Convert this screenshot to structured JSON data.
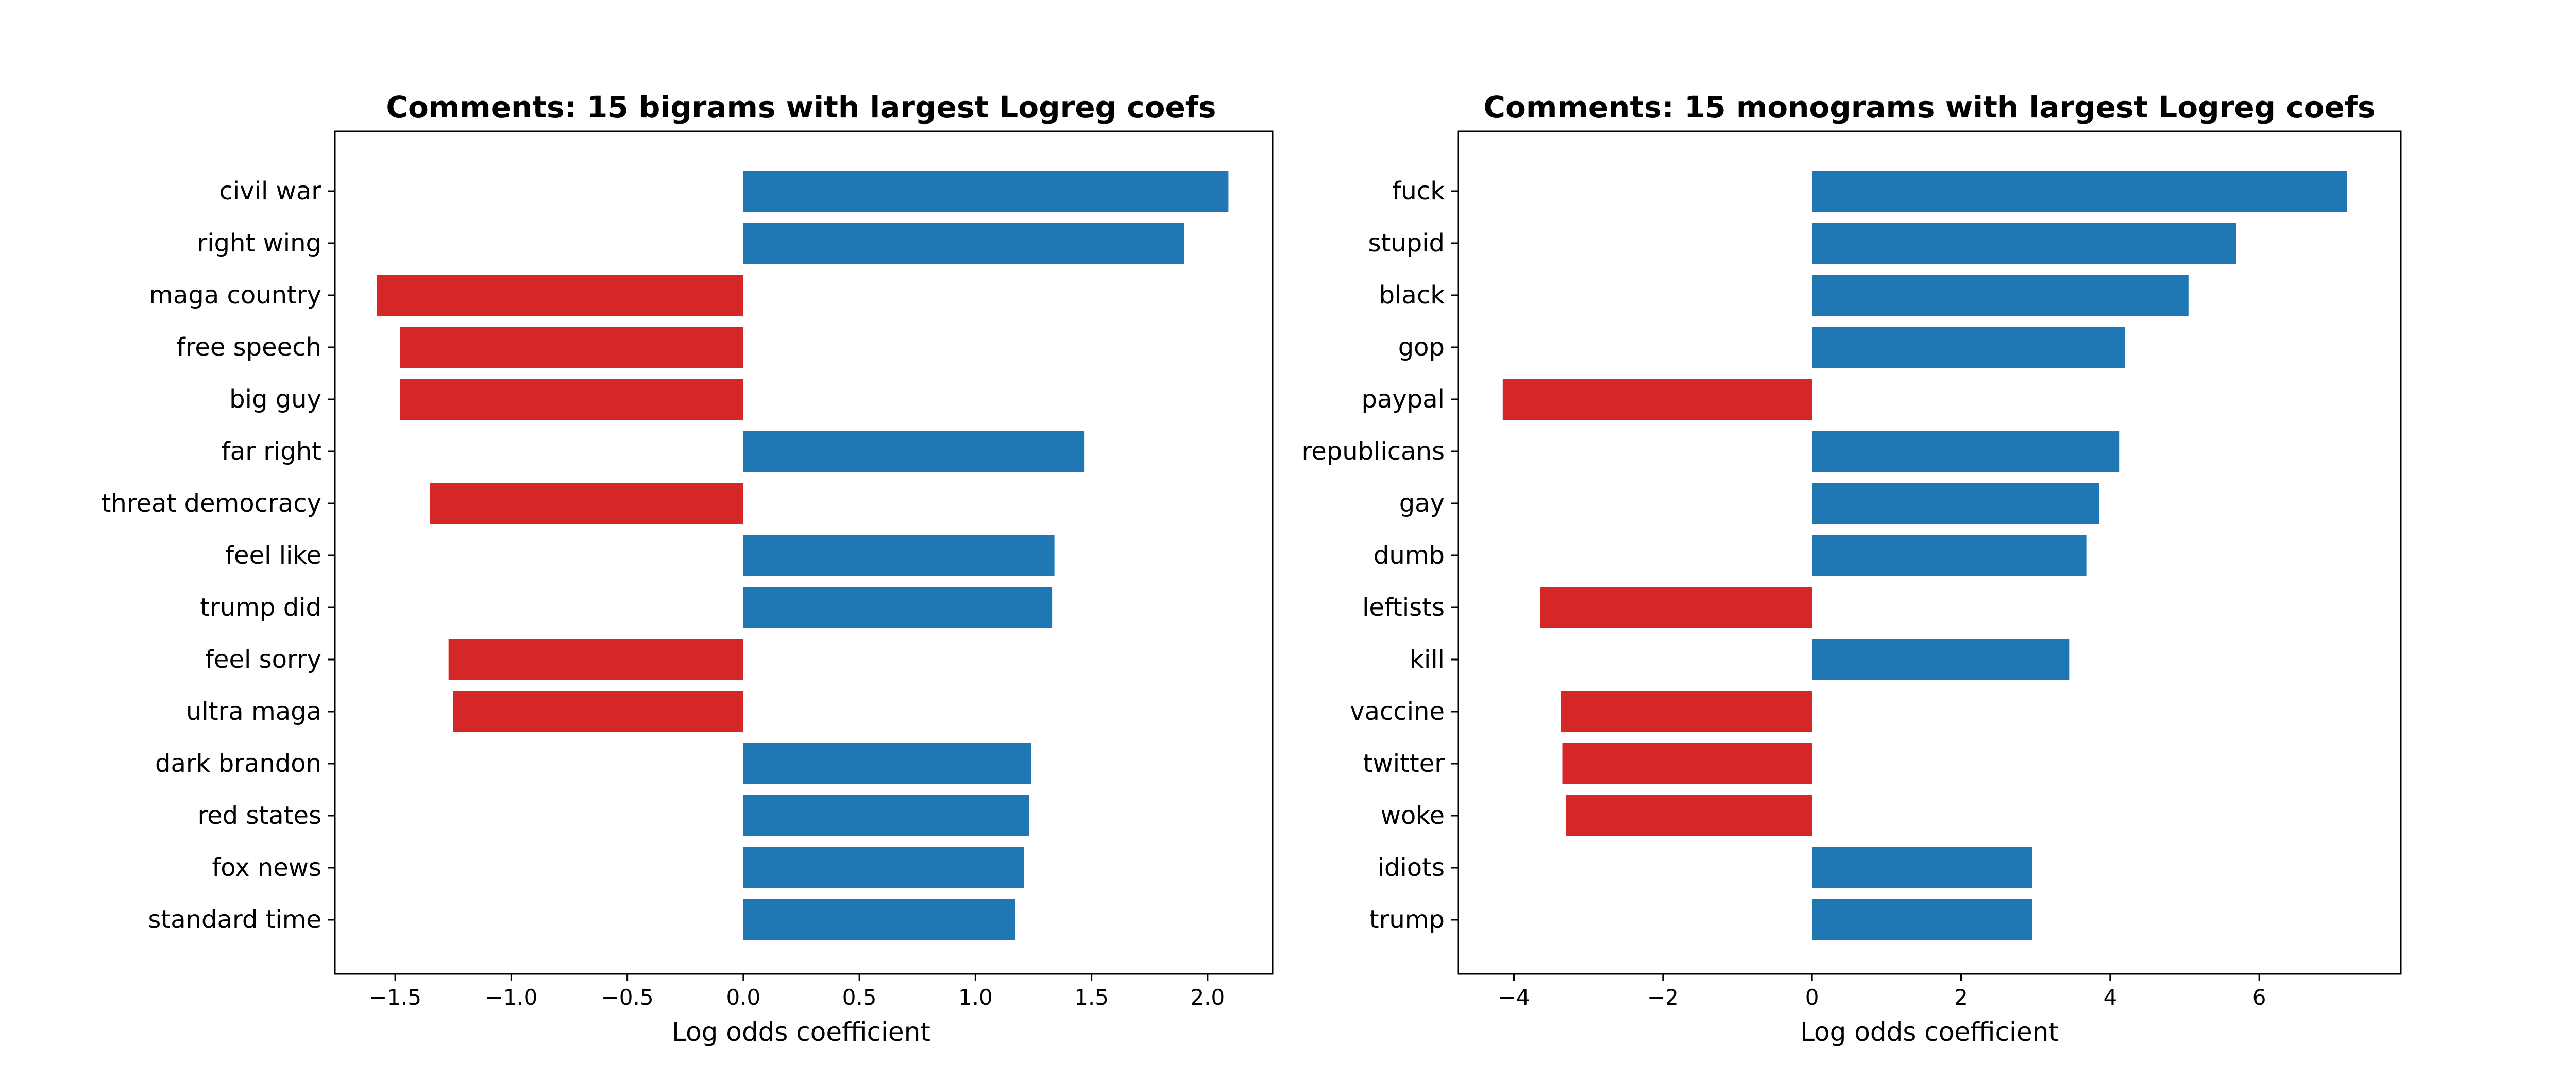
{
  "chart_data": [
    {
      "type": "bar",
      "orientation": "horizontal",
      "title": "Comments: 15 bigrams with largest Logreg coefs",
      "xlabel": "Log odds coefficient",
      "ylabel": "",
      "xlim": [
        -1.76,
        2.28
      ],
      "xticks": [
        -1.5,
        -1.0,
        -0.5,
        0.0,
        0.5,
        1.0,
        1.5,
        2.0
      ],
      "xtick_labels": [
        "−1.5",
        "−1.0",
        "−0.5",
        "0.0",
        "0.5",
        "1.0",
        "1.5",
        "2.0"
      ],
      "categories": [
        "civil war",
        "right wing",
        "maga country",
        "free speech",
        "big guy",
        "far right",
        "threat democracy",
        "feel like",
        "trump did",
        "feel sorry",
        "ultra maga",
        "dark brandon",
        "red states",
        "fox news",
        "standard time"
      ],
      "values": [
        2.09,
        1.9,
        -1.58,
        -1.48,
        -1.48,
        1.47,
        -1.35,
        1.34,
        1.33,
        -1.27,
        -1.25,
        1.24,
        1.23,
        1.21,
        1.17
      ],
      "colors": {
        "positive": "#1f77b4",
        "negative": "#d62728"
      },
      "grid": false
    },
    {
      "type": "bar",
      "orientation": "horizontal",
      "title": "Comments: 15 monograms with largest Logreg coefs",
      "xlabel": "Log odds coefficient",
      "ylabel": "",
      "xlim": [
        -4.75,
        7.9
      ],
      "xticks": [
        -4,
        -2,
        0,
        2,
        4,
        6
      ],
      "xtick_labels": [
        "−4",
        "−2",
        "0",
        "2",
        "4",
        "6"
      ],
      "categories": [
        "fuck",
        "stupid",
        "black",
        "gop",
        "paypal",
        "republicans",
        "gay",
        "dumb",
        "leftists",
        "kill",
        "vaccine",
        "twitter",
        "woke",
        "idiots",
        "trump"
      ],
      "values": [
        7.18,
        5.69,
        5.05,
        4.2,
        -4.15,
        4.12,
        3.85,
        3.68,
        -3.65,
        3.45,
        -3.37,
        -3.35,
        -3.3,
        2.95,
        2.95
      ],
      "colors": {
        "positive": "#1f77b4",
        "negative": "#d62728"
      },
      "grid": false
    }
  ]
}
